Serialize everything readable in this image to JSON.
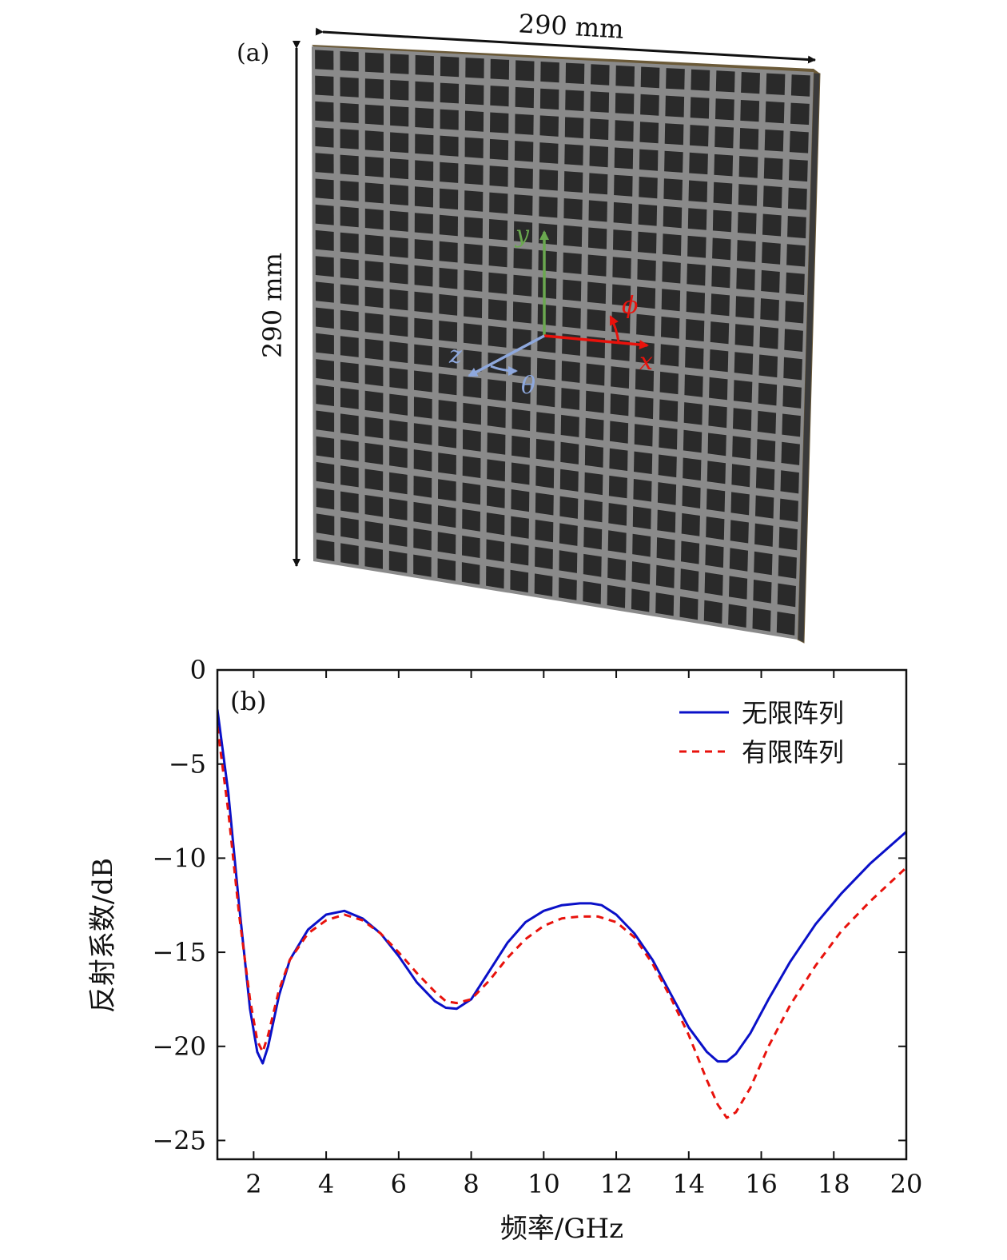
{
  "panel_a": {
    "label": "(a)",
    "width_dim": "290 mm",
    "height_dim": "290 mm",
    "axes": {
      "x": {
        "label": "x",
        "color": "#e8120c"
      },
      "y": {
        "label": "y",
        "color": "#6aa84f"
      },
      "z": {
        "label": "z",
        "color": "#8ea8dd"
      },
      "phi": {
        "label": "ϕ",
        "color": "#e8120c"
      },
      "theta": {
        "label": "θ",
        "color": "#8ea8dd"
      }
    },
    "grid_rows": 20,
    "grid_cols": 20,
    "colors": {
      "cell": "#2a2a2a",
      "frame": "#8a8a8a",
      "edge": "#5c4a2a"
    }
  },
  "panel_b": {
    "label": "(b)",
    "chart_data": {
      "type": "line",
      "xlabel": "频率/GHz",
      "ylabel": "反射系数/dB",
      "xlim": [
        1,
        20
      ],
      "ylim": [
        -26,
        0
      ],
      "xticks": [
        2,
        4,
        6,
        8,
        10,
        12,
        14,
        16,
        18,
        20
      ],
      "yticks": [
        0,
        -5,
        -10,
        -15,
        -20,
        -25
      ],
      "ytick_labels": [
        "0",
        "−5",
        "−10",
        "−15",
        "−20",
        "−25"
      ],
      "legend_position": "top-right",
      "series": [
        {
          "name": "无限阵列",
          "color": "#0a10c8",
          "style": "solid",
          "x": [
            1.0,
            1.3,
            1.6,
            1.9,
            2.1,
            2.25,
            2.4,
            2.7,
            3.0,
            3.5,
            4.0,
            4.5,
            5.0,
            5.5,
            6.0,
            6.5,
            7.0,
            7.3,
            7.6,
            8.0,
            8.5,
            9.0,
            9.5,
            10.0,
            10.5,
            11.0,
            11.3,
            11.6,
            12.0,
            12.5,
            13.0,
            13.5,
            14.0,
            14.5,
            14.8,
            15.05,
            15.3,
            15.7,
            16.2,
            16.8,
            17.5,
            18.2,
            19.0,
            20.0
          ],
          "y": [
            -2.1,
            -6.5,
            -12.5,
            -18.0,
            -20.3,
            -20.9,
            -20.0,
            -17.3,
            -15.4,
            -13.8,
            -13.0,
            -12.8,
            -13.2,
            -14.0,
            -15.2,
            -16.6,
            -17.6,
            -17.95,
            -18.0,
            -17.5,
            -16.0,
            -14.5,
            -13.4,
            -12.8,
            -12.5,
            -12.4,
            -12.4,
            -12.5,
            -13.0,
            -14.0,
            -15.4,
            -17.2,
            -19.0,
            -20.3,
            -20.8,
            -20.8,
            -20.4,
            -19.3,
            -17.5,
            -15.5,
            -13.5,
            -11.9,
            -10.3,
            -8.6
          ]
        },
        {
          "name": "有限阵列",
          "color": "#e8120c",
          "style": "dashed",
          "x": [
            1.0,
            1.3,
            1.6,
            1.9,
            2.1,
            2.25,
            2.4,
            2.7,
            3.0,
            3.5,
            4.0,
            4.5,
            5.0,
            5.5,
            6.0,
            6.5,
            7.0,
            7.3,
            7.6,
            8.0,
            8.5,
            9.0,
            9.5,
            10.0,
            10.5,
            11.0,
            11.5,
            12.0,
            12.5,
            13.0,
            13.5,
            14.0,
            14.5,
            14.8,
            15.05,
            15.3,
            15.7,
            16.2,
            16.8,
            17.5,
            18.2,
            19.0,
            20.0
          ],
          "y": [
            -3.0,
            -7.5,
            -13.0,
            -17.5,
            -19.7,
            -20.3,
            -19.4,
            -17.0,
            -15.4,
            -14.0,
            -13.3,
            -13.0,
            -13.3,
            -14.0,
            -15.0,
            -16.1,
            -17.1,
            -17.6,
            -17.7,
            -17.5,
            -16.5,
            -15.3,
            -14.3,
            -13.6,
            -13.2,
            -13.1,
            -13.1,
            -13.4,
            -14.2,
            -15.6,
            -17.4,
            -19.4,
            -21.8,
            -23.1,
            -23.8,
            -23.5,
            -22.2,
            -20.0,
            -17.8,
            -15.7,
            -13.9,
            -12.3,
            -10.5
          ]
        }
      ]
    }
  }
}
